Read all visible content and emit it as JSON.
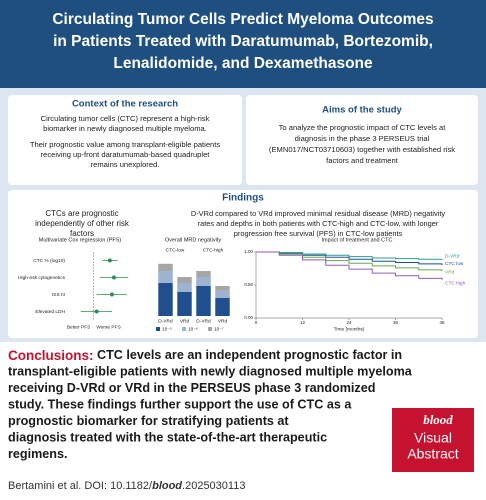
{
  "header": {
    "title_lines": [
      "Circulating Tumor Cells Predict Myeloma Outcomes",
      "in Patients Treated with Daratumumab, Bortezomib,",
      "Lenalidomide, and Dexamethasone"
    ]
  },
  "context": {
    "heading": "Context of the research",
    "paragraphs": [
      [
        "Circulating tumor cells (CTC) represent a high-risk",
        "biomarker in newly diagnosed multiple myeloma."
      ],
      [
        "Their prognostic value among transplant-eligible patients",
        "receiving up-front daratumumab-based quadruplet",
        "remains unexplored."
      ]
    ]
  },
  "aims": {
    "heading": "Aims of the study",
    "lines": [
      "To analyze the prognostic impact of CTC levels at",
      "diagnosis in the phase 3 PERSEUS trial",
      "(EMN017/NCT03710603) together with established risk",
      "factors and treatment"
    ]
  },
  "findings": {
    "heading": "Findings",
    "left": [
      "CTCs are prognostic",
      "independently of other risk",
      "factors"
    ],
    "right": [
      "D-VRd compared to VRd improved minimal residual disease (MRD) negativity",
      "rates and depths in both patients with CTC-high and CTC-low, with longer",
      "progression free survival (PFS) in CTC-low patients"
    ]
  },
  "chart_data": [
    {
      "type": "forest",
      "title": "Multivariate Cox regression (PFS)",
      "categories": [
        "CTC % (log10)",
        "High-risk cytogenetics",
        "ISS III",
        "Elevated LDH"
      ],
      "values": [
        1.6,
        1.8,
        1.7,
        1.1
      ],
      "ci_low": [
        1.3,
        1.2,
        1.1,
        0.7
      ],
      "ci_high": [
        2.0,
        2.7,
        2.6,
        1.7
      ],
      "xlim": [
        0.5,
        4
      ],
      "log_x": true,
      "reference": 1,
      "color": "#2e8b57",
      "left_label": "Better PFS",
      "right_label": "Worse PFS"
    },
    {
      "type": "stacked_bar",
      "title": "Overall MRD negativity",
      "groups": [
        "CTC-low",
        "CTC-high"
      ],
      "categories": [
        "D-VRd",
        "VRd",
        "D-VRd",
        "VRd"
      ],
      "ylim": [
        0,
        100
      ],
      "series": [
        {
          "name": "10⁻⁵",
          "color": "#1f4f8f",
          "values": [
            55,
            40,
            50,
            30
          ]
        },
        {
          "name": "10⁻⁶",
          "color": "#9db3cf",
          "values": [
            20,
            15,
            15,
            12
          ]
        },
        {
          "name": "10⁻⁷",
          "color": "#a6a6a6",
          "values": [
            12,
            10,
            10,
            8
          ]
        }
      ]
    },
    {
      "type": "line",
      "title": "Impact of treatment and CTC",
      "x_label": "Time (months)",
      "xlim": [
        0,
        48
      ],
      "ylim": [
        0,
        1
      ],
      "xticks": [
        0,
        12,
        24,
        36,
        48
      ],
      "yticks": [
        {
          "value": 0,
          "label": "0.00"
        },
        {
          "value": 0.5,
          "label": "0.50"
        },
        {
          "value": 1,
          "label": "1.00"
        }
      ],
      "x": [
        0,
        6,
        12,
        18,
        24,
        30,
        36,
        42,
        48
      ],
      "series": [
        {
          "name": "D-VRd",
          "color": "#2a9d8f",
          "values": [
            1,
            0.99,
            0.97,
            0.95,
            0.93,
            0.91,
            0.9,
            0.89,
            0.88
          ]
        },
        {
          "name": "CTC low",
          "color": "#1f4f8f",
          "values": [
            1,
            0.98,
            0.95,
            0.92,
            0.89,
            0.86,
            0.84,
            0.82,
            0.8
          ]
        },
        {
          "name": "VRd",
          "color": "#6aa84f",
          "values": [
            1,
            0.97,
            0.92,
            0.87,
            0.83,
            0.79,
            0.76,
            0.73,
            0.71
          ]
        },
        {
          "name": "CTC high",
          "color": "#8e5cb5",
          "values": [
            1,
            0.95,
            0.88,
            0.8,
            0.74,
            0.68,
            0.64,
            0.6,
            0.58
          ]
        }
      ]
    }
  ],
  "conclusions": {
    "label": "Conclusions:",
    "lines": [
      " CTC levels are an independent prognostic factor in",
      "transplant-eligible patients with newly diagnosed multiple myeloma",
      "receiving D-VRd or VRd in the PERSEUS phase 3 randomized",
      "study. These findings further support the use of CTC as a",
      "prognostic biomarker for stratifying patients at",
      "diagnosis treated with the state-of-the-art therapeutic",
      "regimens."
    ]
  },
  "logo": {
    "brand": "blood",
    "lines": [
      "Visual",
      "Abstract"
    ]
  },
  "citation": {
    "prefix": "Bertamini et al. DOI: 10.1182/",
    "journal": "blood",
    "suffix": ".2025030113"
  }
}
